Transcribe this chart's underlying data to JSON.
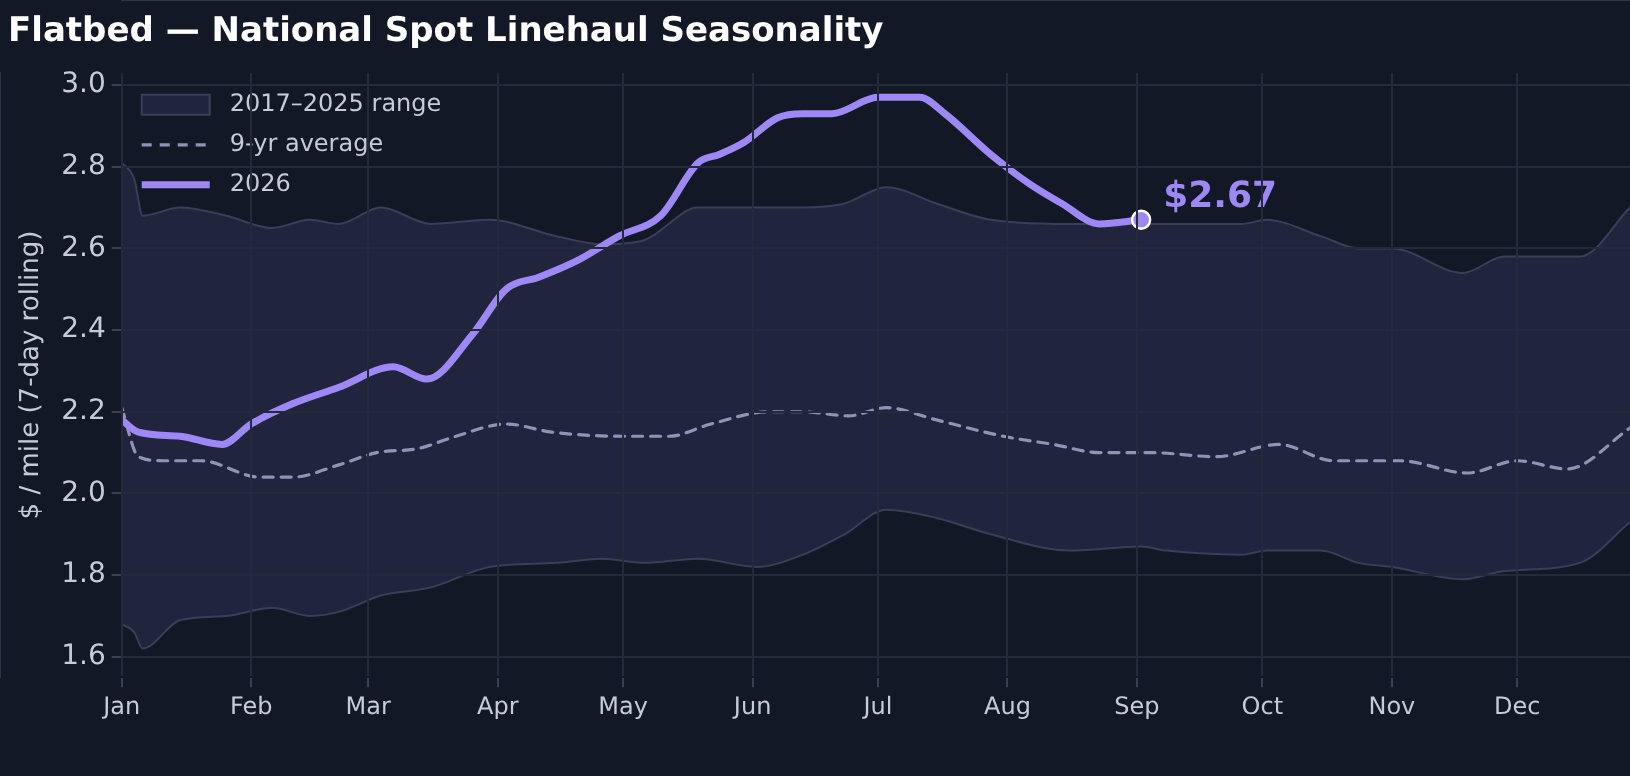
{
  "chart_data": {
    "type": "line",
    "title": "Flatbed — National Spot Linehaul Seasonality",
    "ylabel": "$ / mile (7-day rolling)",
    "xlim": [
      "--01-01",
      "--12-28"
    ],
    "xticks": [
      {
        "value": "--01-01",
        "label": "Jan"
      },
      {
        "value": "--02-01",
        "label": "Feb"
      },
      {
        "value": "--03-01",
        "label": "Mar"
      },
      {
        "value": "--04-01",
        "label": "Apr"
      },
      {
        "value": "--05-01",
        "label": "May"
      },
      {
        "value": "--06-01",
        "label": "Jun"
      },
      {
        "value": "--07-01",
        "label": "Jul"
      },
      {
        "value": "--08-01",
        "label": "Aug"
      },
      {
        "value": "--09-01",
        "label": "Sep"
      },
      {
        "value": "--10-01",
        "label": "Oct"
      },
      {
        "value": "--11-01",
        "label": "Nov"
      },
      {
        "value": "--12-01",
        "label": "Dec"
      }
    ],
    "ylim": [
      1.55,
      3.03
    ],
    "yticks": [
      1.6,
      1.8,
      {
        "value": 2,
        "label": "2.0"
      },
      2.2,
      2.4,
      2.6,
      2.8,
      {
        "value": 3,
        "label": "3.0"
      }
    ],
    "grid": true,
    "legend": "top left",
    "annotations": [
      {
        "text": "$2.67",
        "x": "--09-02",
        "y": 2.67
      }
    ],
    "series": [
      {
        "name": "2017–2025 range",
        "type": "area",
        "color": "#21243d",
        "x": [
          "--01-01",
          "--01-04",
          "--01-06",
          "--01-15",
          "--01-26",
          "--02-06",
          "--02-15",
          "--02-22",
          "--03-04",
          "--03-16",
          "--03-30",
          "--04-15",
          "--04-26",
          "--05-06",
          "--05-19",
          "--06-02",
          "--06-13",
          "--06-23",
          "--07-03",
          "--07-15",
          "--07-28",
          "--08-16",
          "--09-02",
          "--09-08",
          "--09-26",
          "--10-02",
          "--10-15",
          "--10-24",
          "--11-01",
          "--11-18",
          "--11-28",
          "--12-16",
          "--12-28"
        ],
        "values": [
          2.81,
          2.77,
          2.68,
          2.7,
          2.68,
          2.65,
          2.67,
          2.66,
          2.7,
          2.66,
          2.67,
          2.63,
          2.61,
          2.62,
          2.7,
          2.7,
          2.7,
          2.71,
          2.75,
          2.71,
          2.67,
          2.66,
          2.66,
          2.66,
          2.66,
          2.67,
          2.63,
          2.6,
          2.6,
          2.54,
          2.58,
          2.58,
          2.7
        ]
      },
      {
        "type": "area",
        "color": "#131826",
        "x": [
          "--01-01",
          "--01-04",
          "--01-06",
          "--01-15",
          "--01-26",
          "--02-06",
          "--02-15",
          "--02-22",
          "--03-04",
          "--03-16",
          "--03-30",
          "--04-15",
          "--04-26",
          "--05-06",
          "--05-19",
          "--06-02",
          "--06-13",
          "--06-23",
          "--07-03",
          "--07-15",
          "--07-28",
          "--08-16",
          "--09-02",
          "--09-08",
          "--09-26",
          "--10-02",
          "--10-15",
          "--10-24",
          "--11-01",
          "--11-18",
          "--11-28",
          "--12-16",
          "--12-28"
        ],
        "values": [
          1.68,
          1.66,
          1.62,
          1.69,
          1.7,
          1.72,
          1.7,
          1.71,
          1.75,
          1.77,
          1.82,
          1.83,
          1.84,
          1.83,
          1.84,
          1.82,
          1.85,
          1.9,
          1.96,
          1.94,
          1.9,
          1.86,
          1.87,
          1.86,
          1.85,
          1.86,
          1.86,
          1.83,
          1.82,
          1.79,
          1.81,
          1.83,
          1.93
        ]
      },
      {
        "name": "9-yr average",
        "line_style": "dashed",
        "color": "#8f93b5",
        "x": [
          "--01-01",
          "--01-05",
          "--01-11",
          "--01-20",
          "--02-03",
          "--02-11",
          "--02-22",
          "--03-03",
          "--03-13",
          "--03-22",
          "--04-03",
          "--04-14",
          "--05-01",
          "--05-12",
          "--05-22",
          "--06-05",
          "--06-13",
          "--06-24",
          "--07-03",
          "--07-15",
          "--07-31",
          "--08-12",
          "--08-23",
          "--09-04",
          "--09-20",
          "--10-05",
          "--10-18",
          "--11-03",
          "--11-19",
          "--12-01",
          "--12-13",
          "--12-28"
        ],
        "values": [
          2.21,
          2.09,
          2.08,
          2.08,
          2.04,
          2.04,
          2.07,
          2.1,
          2.11,
          2.14,
          2.17,
          2.15,
          2.14,
          2.14,
          2.17,
          2.2,
          2.2,
          2.19,
          2.21,
          2.18,
          2.14,
          2.12,
          2.1,
          2.1,
          2.09,
          2.12,
          2.08,
          2.08,
          2.05,
          2.08,
          2.06,
          2.16
        ]
      },
      {
        "name": "2026",
        "color": "#9d88f6",
        "x": [
          "--01-01",
          "--01-05",
          "--01-15",
          "--01-25",
          "--02-01",
          "--02-11",
          "--02-22",
          "--03-07",
          "--03-15",
          "--03-26",
          "--04-03",
          "--04-11",
          "--04-20",
          "--04-30",
          "--05-10",
          "--05-19",
          "--05-24",
          "--05-30",
          "--06-07",
          "--06-13",
          "--06-20",
          "--07-01",
          "--07-11",
          "--07-17",
          "--07-28",
          "--08-06",
          "--08-14",
          "--08-23",
          "--09-02"
        ],
        "values": [
          2.18,
          2.15,
          2.14,
          2.12,
          2.17,
          2.22,
          2.26,
          2.31,
          2.28,
          2.39,
          2.5,
          2.53,
          2.57,
          2.63,
          2.68,
          2.81,
          2.83,
          2.86,
          2.92,
          2.93,
          2.93,
          2.97,
          2.97,
          2.93,
          2.83,
          2.76,
          2.71,
          2.66,
          2.67
        ]
      }
    ]
  }
}
